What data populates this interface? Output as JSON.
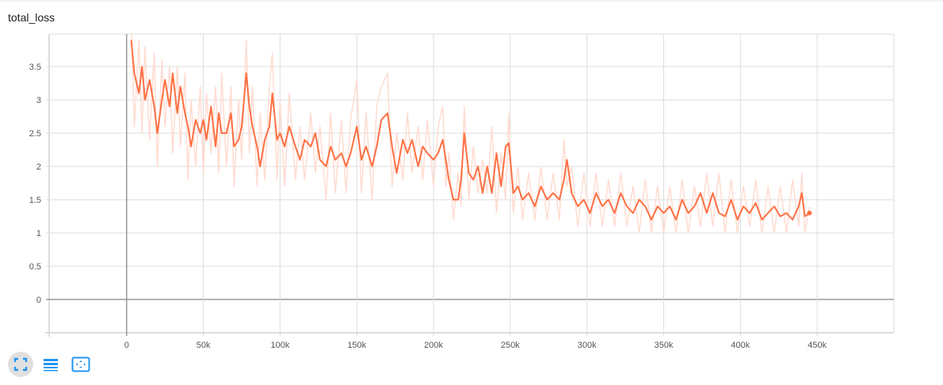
{
  "title": "total_loss",
  "controls": {
    "icons": [
      "fit-domain-icon",
      "toggle-log-scale-icon",
      "fit-to-data-icon"
    ]
  },
  "colors": {
    "smoothed": "#ff7043",
    "raw": "#ffdcd1",
    "grid": "#dddddd",
    "axis": "#999999"
  },
  "chart_data": {
    "type": "line",
    "title": "total_loss",
    "xlim": [
      -50500,
      500000
    ],
    "ylim": [
      -0.5,
      3.99
    ],
    "grid": true,
    "x_ticks": [
      "0",
      "50k",
      "100k",
      "150k",
      "200k",
      "250k",
      "300k",
      "350k",
      "400k",
      "450k"
    ],
    "x_tick_values": [
      0,
      50000,
      100000,
      150000,
      200000,
      250000,
      300000,
      350000,
      400000,
      450000
    ],
    "y_ticks": [
      "0",
      "0.5",
      "1",
      "1.5",
      "2",
      "2.5",
      "3",
      "3.5"
    ],
    "y_tick_values": [
      0,
      0.5,
      1,
      1.5,
      2,
      2.5,
      3,
      3.5
    ],
    "x_k": [
      3,
      5,
      8,
      10,
      12,
      15,
      18,
      20,
      23,
      25,
      28,
      30,
      33,
      35,
      38,
      40,
      42,
      45,
      48,
      50,
      52,
      55,
      58,
      60,
      62,
      65,
      68,
      70,
      73,
      75,
      78,
      80,
      82,
      85,
      87,
      90,
      93,
      95,
      98,
      100,
      103,
      106,
      110,
      113,
      116,
      120,
      123,
      126,
      130,
      133,
      136,
      140,
      143,
      146,
      150,
      153,
      156,
      160,
      163,
      166,
      170,
      173,
      176,
      180,
      183,
      186,
      190,
      193,
      196,
      200,
      203,
      206,
      208,
      210,
      213,
      216,
      218,
      220,
      223,
      226,
      229,
      232,
      235,
      238,
      241,
      244,
      247,
      249,
      252,
      255,
      258,
      262,
      266,
      270,
      274,
      278,
      282,
      285,
      287,
      290,
      294,
      298,
      302,
      306,
      310,
      314,
      318,
      322,
      326,
      330,
      334,
      338,
      342,
      346,
      350,
      354,
      358,
      362,
      366,
      370,
      374,
      378,
      382,
      386,
      390,
      394,
      398,
      402,
      406,
      410,
      414,
      418,
      422,
      426,
      430,
      434,
      438,
      440,
      442,
      445
    ],
    "series": [
      {
        "role": "smoothed",
        "values": [
          3.9,
          3.4,
          3.1,
          3.5,
          3.0,
          3.3,
          2.9,
          2.5,
          3.0,
          3.3,
          2.9,
          3.4,
          2.8,
          3.2,
          2.8,
          2.6,
          2.3,
          2.7,
          2.5,
          2.7,
          2.4,
          2.9,
          2.3,
          2.8,
          2.5,
          2.5,
          2.8,
          2.3,
          2.4,
          2.6,
          3.4,
          2.9,
          2.6,
          2.3,
          2.0,
          2.4,
          2.6,
          3.1,
          2.4,
          2.5,
          2.3,
          2.6,
          2.3,
          2.1,
          2.4,
          2.3,
          2.5,
          2.1,
          2.0,
          2.3,
          2.1,
          2.2,
          2.0,
          2.2,
          2.6,
          2.1,
          2.3,
          2.0,
          2.3,
          2.7,
          2.8,
          2.3,
          1.9,
          2.4,
          2.2,
          2.4,
          2.0,
          2.3,
          2.2,
          2.1,
          2.2,
          2.4,
          2.1,
          1.8,
          1.5,
          1.5,
          1.8,
          2.5,
          1.9,
          1.8,
          2.0,
          1.6,
          2.0,
          1.6,
          2.2,
          1.7,
          2.3,
          2.35,
          1.6,
          1.7,
          1.5,
          1.6,
          1.4,
          1.7,
          1.5,
          1.6,
          1.5,
          1.8,
          2.1,
          1.6,
          1.4,
          1.5,
          1.3,
          1.6,
          1.4,
          1.5,
          1.3,
          1.6,
          1.4,
          1.3,
          1.5,
          1.4,
          1.2,
          1.4,
          1.3,
          1.4,
          1.2,
          1.5,
          1.3,
          1.4,
          1.6,
          1.3,
          1.6,
          1.3,
          1.25,
          1.5,
          1.2,
          1.4,
          1.3,
          1.45,
          1.2,
          1.3,
          1.4,
          1.25,
          1.3,
          1.2,
          1.4,
          1.6,
          1.25,
          1.3
        ]
      },
      {
        "role": "raw",
        "values": [
          4.2,
          2.6,
          3.9,
          2.5,
          3.8,
          2.4,
          3.7,
          2.0,
          3.6,
          2.6,
          3.5,
          2.2,
          3.5,
          2.3,
          3.4,
          1.8,
          3.0,
          2.0,
          3.2,
          1.9,
          3.1,
          2.2,
          3.2,
          1.9,
          3.4,
          2.0,
          3.2,
          1.7,
          3.0,
          2.1,
          3.9,
          2.2,
          3.2,
          1.7,
          2.8,
          1.8,
          3.2,
          3.7,
          1.8,
          3.0,
          1.7,
          3.1,
          1.8,
          2.6,
          1.8,
          2.8,
          1.9,
          2.6,
          1.5,
          2.8,
          1.6,
          2.7,
          1.6,
          2.7,
          3.3,
          1.6,
          2.8,
          1.5,
          2.9,
          3.2,
          3.4,
          1.7,
          2.5,
          1.8,
          2.8,
          1.9,
          2.6,
          1.8,
          2.7,
          1.7,
          2.6,
          2.9,
          1.7,
          2.2,
          1.2,
          1.9,
          1.4,
          2.9,
          1.5,
          2.3,
          1.6,
          2.1,
          1.6,
          2.6,
          1.3,
          2.2,
          1.5,
          2.8,
          1.3,
          2.0,
          1.2,
          1.9,
          1.2,
          2.0,
          1.2,
          1.9,
          1.2,
          2.4,
          1.7,
          2.0,
          1.1,
          1.9,
          1.1,
          1.9,
          1.1,
          1.8,
          1.1,
          1.9,
          1.1,
          1.7,
          1.0,
          1.8,
          1.0,
          1.7,
          1.0,
          1.7,
          1.0,
          1.8,
          1.0,
          1.7,
          1.1,
          1.9,
          1.1,
          1.9,
          1.0,
          1.8,
          1.0,
          1.7,
          1.1,
          1.8,
          1.0,
          1.7,
          1.0,
          1.7,
          1.0,
          1.8,
          1.1,
          1.9,
          1.0,
          1.4
        ]
      }
    ]
  }
}
